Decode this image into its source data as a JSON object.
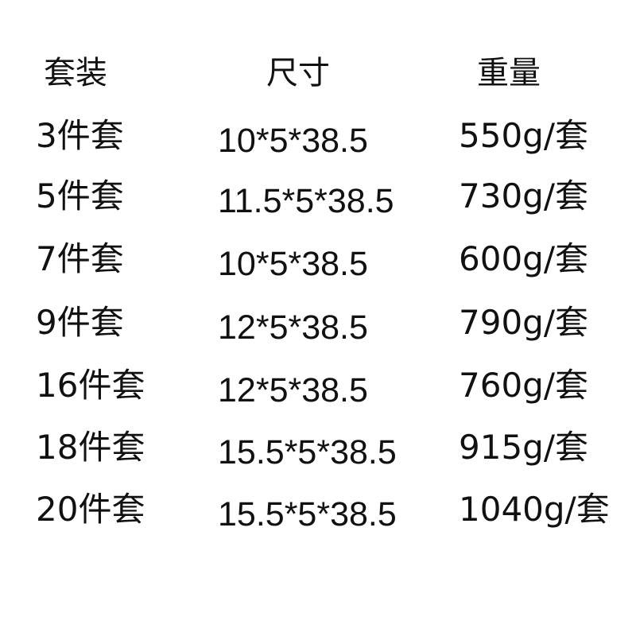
{
  "headers": {
    "set": "套装",
    "size": "尺寸",
    "weight": "重量"
  },
  "rows": [
    {
      "set": "3件套",
      "size": "10*5*38.5",
      "weight": "550g/套"
    },
    {
      "set": "5件套",
      "size": "11.5*5*38.5",
      "weight": "730g/套"
    },
    {
      "set": "7件套",
      "size": "10*5*38.5",
      "weight": "600g/套"
    },
    {
      "set": "9件套",
      "size": "12*5*38.5",
      "weight": "790g/套"
    },
    {
      "set": "16件套",
      "size": "12*5*38.5",
      "weight": "760g/套"
    },
    {
      "set": "18件套",
      "size": "15.5*5*38.5",
      "weight": "915g/套"
    },
    {
      "set": "20件套",
      "size": "15.5*5*38.5",
      "weight": "1040g/套"
    }
  ]
}
